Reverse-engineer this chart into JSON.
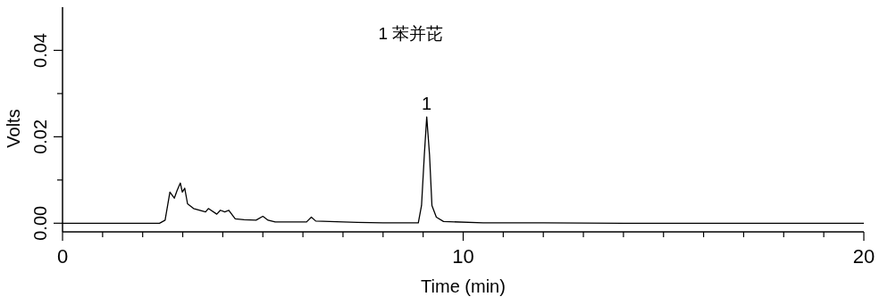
{
  "chart_data": {
    "type": "line",
    "xlabel": "Time (min)",
    "ylabel": "Volts",
    "x": [
      0,
      1,
      2,
      2.42,
      2.56,
      2.68,
      2.79,
      2.86,
      2.94,
      2.99,
      3.05,
      3.12,
      3.27,
      3.57,
      3.64,
      3.85,
      3.94,
      4.05,
      4.15,
      4.31,
      4.53,
      4.83,
      5.0,
      5.13,
      5.31,
      6.09,
      6.21,
      6.32,
      7.36,
      8.0,
      8.88,
      8.96,
      9.03,
      9.09,
      9.16,
      9.22,
      9.33,
      9.51,
      10.5,
      12,
      14,
      16,
      18,
      20
    ],
    "series": [
      {
        "color": "#000000",
        "values": [
          0,
          0,
          0,
          0,
          0.0007,
          0.0072,
          0.0058,
          0.0076,
          0.0093,
          0.0072,
          0.0081,
          0.0045,
          0.0034,
          0.0026,
          0.0034,
          0.0021,
          0.003,
          0.0026,
          0.003,
          0.001,
          0.0008,
          0.0007,
          0.0016,
          0.0007,
          0.0003,
          0.0003,
          0.0014,
          0.0005,
          0.0002,
          0.0001,
          0.0001,
          0.0041,
          0.0158,
          0.0246,
          0.0158,
          0.0041,
          0.0014,
          0.0004,
          0.0001,
          0.0001,
          0,
          0,
          0,
          0
        ]
      }
    ],
    "xlim": [
      0,
      20
    ],
    "ylim": [
      -0.002,
      0.05
    ],
    "xticks": [
      0,
      {
        "value": 1,
        "label": null
      },
      {
        "value": 2,
        "label": null
      },
      {
        "value": 3,
        "label": null
      },
      {
        "value": 4,
        "label": null
      },
      {
        "value": 5,
        "label": null
      },
      {
        "value": 6,
        "label": null
      },
      {
        "value": 7,
        "label": null
      },
      {
        "value": 8,
        "label": null
      },
      {
        "value": 9,
        "label": null
      },
      10,
      {
        "value": 11,
        "label": null
      },
      {
        "value": 12,
        "label": null
      },
      {
        "value": 13,
        "label": null
      },
      {
        "value": 14,
        "label": null
      },
      {
        "value": 15,
        "label": null
      },
      {
        "value": 16,
        "label": null
      },
      {
        "value": 17,
        "label": null
      },
      {
        "value": 18,
        "label": null
      },
      {
        "value": 19,
        "label": null
      },
      20
    ],
    "yticks": [
      {
        "value": 0,
        "label": "0.00"
      },
      {
        "value": 0.01,
        "label": null
      },
      {
        "value": 0.02,
        "label": "0.02"
      },
      {
        "value": 0.03,
        "label": null
      },
      {
        "value": 0.04,
        "label": "0.04"
      }
    ],
    "annotations": [
      "1 苯并芘",
      {
        "text": "1",
        "x": 9.09,
        "y": 0.0246
      }
    ],
    "grid": false,
    "marker": "none",
    "line_style": "solid"
  }
}
